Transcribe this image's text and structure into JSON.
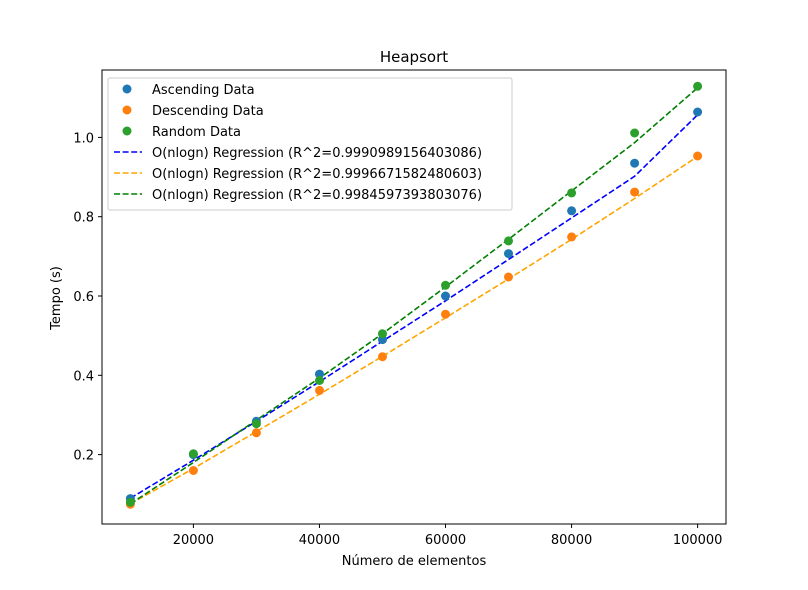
{
  "chart_data": {
    "type": "scatter",
    "title": "Heapsort",
    "xlabel": "Número de elementos",
    "ylabel": "Tempo (s)",
    "xlim": [
      5500,
      104500
    ],
    "ylim": [
      0.025,
      1.17
    ],
    "xticks": [
      20000,
      40000,
      60000,
      80000,
      100000
    ],
    "xtick_labels": [
      "20000",
      "40000",
      "60000",
      "80000",
      "100000"
    ],
    "yticks": [
      0.2,
      0.4,
      0.6,
      0.8,
      1.0
    ],
    "ytick_labels": [
      "0.2",
      "0.4",
      "0.6",
      "0.8",
      "1.0"
    ],
    "grid": false,
    "legend_position": "top-left",
    "x": [
      10000,
      20000,
      30000,
      40000,
      50000,
      60000,
      70000,
      80000,
      90000,
      100000
    ],
    "series": [
      {
        "name": "Ascending Data",
        "kind": "points",
        "color": "#1f77b4",
        "values": [
          0.089,
          0.2,
          0.284,
          0.403,
          0.49,
          0.6,
          0.707,
          0.815,
          0.935,
          1.064
        ]
      },
      {
        "name": "Descending Data",
        "kind": "points",
        "color": "#ff7f0e",
        "values": [
          0.075,
          0.16,
          0.255,
          0.362,
          0.447,
          0.554,
          0.648,
          0.749,
          0.862,
          0.953
        ]
      },
      {
        "name": "Random Data",
        "kind": "points",
        "color": "#2ca02c",
        "values": [
          0.08,
          0.202,
          0.278,
          0.387,
          0.505,
          0.627,
          0.739,
          0.86,
          1.011,
          1.129
        ]
      },
      {
        "name": "O(nlogn) Regression (R^2=0.9990989156403086)",
        "kind": "dashed-line",
        "color": "#0000ff",
        "values": [
          0.09,
          0.186,
          0.284,
          0.384,
          0.486,
          0.588,
          0.692,
          0.797,
          0.902,
          1.057
        ]
      },
      {
        "name": "O(nlogn) Regression (R^2=0.9996671582480603)",
        "kind": "dashed-line",
        "color": "#ffa500",
        "values": [
          0.076,
          0.165,
          0.258,
          0.352,
          0.448,
          0.545,
          0.643,
          0.743,
          0.846,
          0.952
        ]
      },
      {
        "name": "O(nlogn) Regression (R^2=0.9984597393803076)",
        "kind": "dashed-line",
        "color": "#008000",
        "values": [
          0.076,
          0.18,
          0.287,
          0.393,
          0.505,
          0.623,
          0.743,
          0.865,
          0.987,
          1.125
        ]
      }
    ]
  }
}
